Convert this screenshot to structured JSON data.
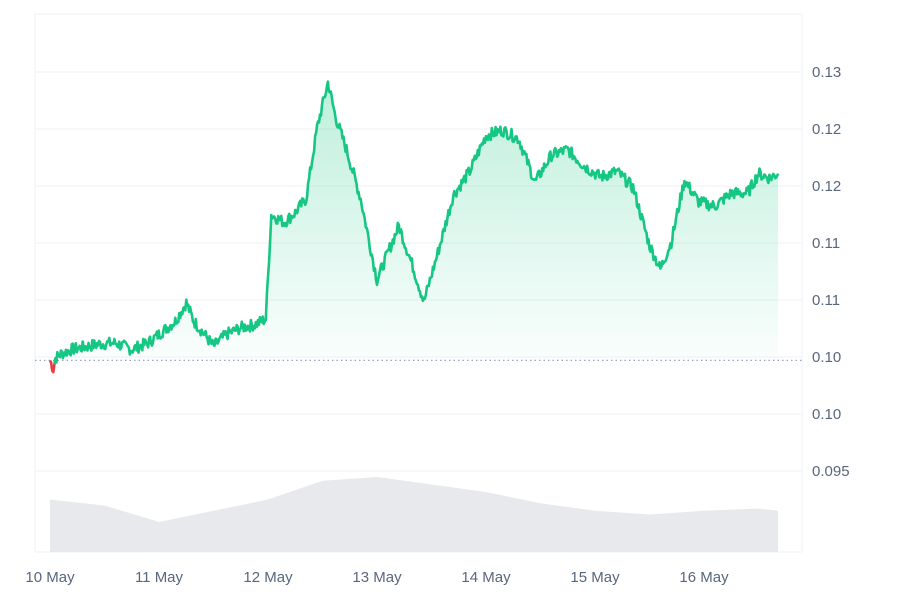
{
  "chart_data": {
    "type": "area",
    "x_labels": [
      "10 May",
      "11 May",
      "12 May",
      "13 May",
      "14 May",
      "15 May",
      "16 May"
    ],
    "y_tick_labels": [
      "0.13",
      "0.12",
      "0.12",
      "0.11",
      "0.11",
      "0.10",
      "0.10",
      "0.095"
    ],
    "ylim": [
      0.0915,
      0.1335
    ],
    "grid": true,
    "baseline": 0.1016,
    "price_series": [
      {
        "t": 0.0,
        "v": 0.1016
      },
      {
        "t": 0.03,
        "v": 0.1008
      },
      {
        "t": 0.05,
        "v": 0.1018
      },
      {
        "t": 0.1,
        "v": 0.1022
      },
      {
        "t": 0.2,
        "v": 0.1026
      },
      {
        "t": 0.3,
        "v": 0.1028
      },
      {
        "t": 0.45,
        "v": 0.1031
      },
      {
        "t": 0.6,
        "v": 0.1032
      },
      {
        "t": 0.75,
        "v": 0.1026
      },
      {
        "t": 0.9,
        "v": 0.1032
      },
      {
        "t": 1.05,
        "v": 0.1044
      },
      {
        "t": 1.15,
        "v": 0.1052
      },
      {
        "t": 1.25,
        "v": 0.1069
      },
      {
        "t": 1.32,
        "v": 0.1052
      },
      {
        "t": 1.4,
        "v": 0.1042
      },
      {
        "t": 1.5,
        "v": 0.1029
      },
      {
        "t": 1.62,
        "v": 0.104
      },
      {
        "t": 1.75,
        "v": 0.1046
      },
      {
        "t": 1.88,
        "v": 0.1049
      },
      {
        "t": 1.98,
        "v": 0.1054
      },
      {
        "t": 2.03,
        "v": 0.115
      },
      {
        "t": 2.15,
        "v": 0.1143
      },
      {
        "t": 2.25,
        "v": 0.1152
      },
      {
        "t": 2.35,
        "v": 0.1165
      },
      {
        "t": 2.45,
        "v": 0.123
      },
      {
        "t": 2.55,
        "v": 0.1272
      },
      {
        "t": 2.62,
        "v": 0.124
      },
      {
        "t": 2.72,
        "v": 0.121
      },
      {
        "t": 2.85,
        "v": 0.1165
      },
      {
        "t": 3.0,
        "v": 0.109
      },
      {
        "t": 3.08,
        "v": 0.111
      },
      {
        "t": 3.2,
        "v": 0.114
      },
      {
        "t": 3.32,
        "v": 0.1105
      },
      {
        "t": 3.43,
        "v": 0.107
      },
      {
        "t": 3.55,
        "v": 0.1112
      },
      {
        "t": 3.7,
        "v": 0.1168
      },
      {
        "t": 3.85,
        "v": 0.119
      },
      {
        "t": 4.0,
        "v": 0.1223
      },
      {
        "t": 4.15,
        "v": 0.1228
      },
      {
        "t": 4.3,
        "v": 0.122
      },
      {
        "t": 4.45,
        "v": 0.118
      },
      {
        "t": 4.6,
        "v": 0.1205
      },
      {
        "t": 4.75,
        "v": 0.121
      },
      {
        "t": 4.9,
        "v": 0.1195
      },
      {
        "t": 5.05,
        "v": 0.1185
      },
      {
        "t": 5.2,
        "v": 0.119
      },
      {
        "t": 5.35,
        "v": 0.1175
      },
      {
        "t": 5.5,
        "v": 0.1122
      },
      {
        "t": 5.6,
        "v": 0.11
      },
      {
        "t": 5.7,
        "v": 0.1125
      },
      {
        "t": 5.82,
        "v": 0.1182
      },
      {
        "t": 5.95,
        "v": 0.1162
      },
      {
        "t": 6.1,
        "v": 0.1158
      },
      {
        "t": 6.25,
        "v": 0.117
      },
      {
        "t": 6.4,
        "v": 0.117
      },
      {
        "t": 6.5,
        "v": 0.1188
      },
      {
        "t": 6.6,
        "v": 0.1184
      },
      {
        "t": 6.68,
        "v": 0.1188
      }
    ],
    "volume_series": [
      {
        "t": 0.0,
        "v": 0.7
      },
      {
        "t": 0.5,
        "v": 0.62
      },
      {
        "t": 1.0,
        "v": 0.4
      },
      {
        "t": 1.5,
        "v": 0.55
      },
      {
        "t": 2.0,
        "v": 0.7
      },
      {
        "t": 2.5,
        "v": 0.95
      },
      {
        "t": 3.0,
        "v": 1.0
      },
      {
        "t": 3.5,
        "v": 0.9
      },
      {
        "t": 4.0,
        "v": 0.8
      },
      {
        "t": 4.5,
        "v": 0.65
      },
      {
        "t": 5.0,
        "v": 0.55
      },
      {
        "t": 5.5,
        "v": 0.5
      },
      {
        "t": 6.0,
        "v": 0.55
      },
      {
        "t": 6.5,
        "v": 0.58
      },
      {
        "t": 6.68,
        "v": 0.55
      }
    ],
    "colors": {
      "up": "#16c784",
      "down": "#ea3943",
      "volume": "#e5e7eb",
      "grid": "#eff2f5",
      "axis_text": "#58667e"
    }
  }
}
